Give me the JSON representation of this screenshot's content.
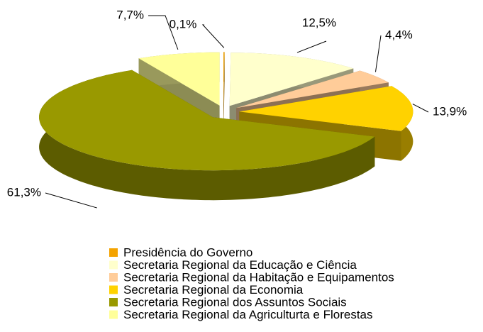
{
  "chart_data": {
    "type": "pie3d",
    "categories": [
      "Presidência do Governo",
      "Secretaria Regional da Educação e Ciência",
      "Secretaria Regional da Habitação e Equipamentos",
      "Secretaria Regional da Economia",
      "Secretaria Regional dos Assuntos Sociais",
      "Secretaria Regional da Agriculturta e Florestas"
    ],
    "values": [
      0.1,
      12.5,
      4.4,
      13.9,
      61.3,
      7.7
    ],
    "value_labels": [
      "0,1%",
      "12,5%",
      "4,4%",
      "13,9%",
      "61,3%",
      "7,7%"
    ],
    "colors": [
      "#f4a300",
      "#ffffcc",
      "#ffcc99",
      "#ffd200",
      "#999900",
      "#ffff99"
    ]
  }
}
